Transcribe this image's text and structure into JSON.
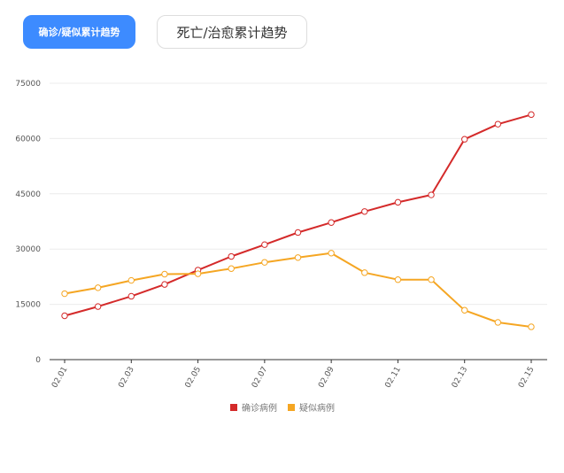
{
  "tabs": [
    {
      "label": "确诊/疑似累计趋势",
      "active": true
    },
    {
      "label": "死亡/治愈累计趋势",
      "active": false
    }
  ],
  "chart_data": {
    "type": "line",
    "x": [
      "02.01",
      "02.02",
      "02.03",
      "02.04",
      "02.05",
      "02.06",
      "02.07",
      "02.08",
      "02.09",
      "02.10",
      "02.11",
      "02.12",
      "02.13",
      "02.14",
      "02.15"
    ],
    "x_tick_labels": [
      "02.01",
      "02.03",
      "02.05",
      "02.07",
      "02.09",
      "02.11",
      "02.13",
      "02.15"
    ],
    "y_tick_labels": [
      "0",
      "15000",
      "30000",
      "45000",
      "60000",
      "75000"
    ],
    "ylim": [
      0,
      75000
    ],
    "grid": true,
    "legend_position": "bottom",
    "series": [
      {
        "name": "确诊病例",
        "color": "#d42a2a",
        "values": [
          11900,
          14400,
          17200,
          20400,
          24300,
          28000,
          31200,
          34500,
          37200,
          40200,
          42700,
          44700,
          59800,
          63900,
          66500
        ]
      },
      {
        "name": "疑似病例",
        "color": "#f5a623",
        "values": [
          17900,
          19500,
          21500,
          23200,
          23300,
          24700,
          26400,
          27700,
          28900,
          23600,
          21700,
          21700,
          13400,
          10100,
          8900
        ]
      }
    ]
  }
}
